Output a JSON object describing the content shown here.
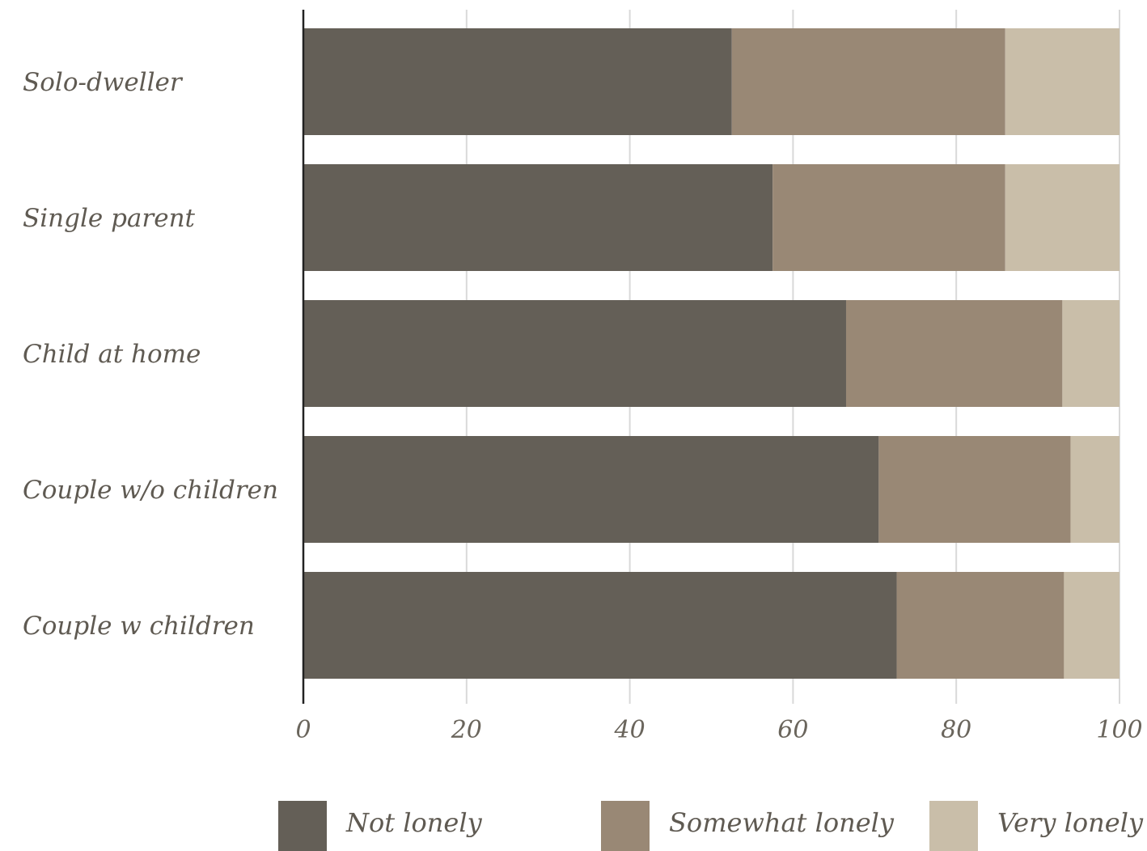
{
  "chart_data": {
    "type": "bar",
    "orientation": "horizontal",
    "stacked": true,
    "categories": [
      "Solo-dweller",
      "Single parent",
      "Child at home",
      "Couple w/o children",
      "Couple w children"
    ],
    "series": [
      {
        "name": "Not lonely",
        "color": "#645f57",
        "values": [
          52.5,
          57.5,
          66.5,
          70.5,
          72.7
        ]
      },
      {
        "name": "Somewhat lonely",
        "color": "#998875",
        "values": [
          33.5,
          28.5,
          26.5,
          23.5,
          20.5
        ]
      },
      {
        "name": "Very lonely",
        "color": "#c9bea9",
        "values": [
          14.0,
          14.0,
          7.0,
          6.0,
          6.8
        ]
      }
    ],
    "x_ticks": [
      "0",
      "20",
      "40",
      "60",
      "80",
      "100"
    ],
    "xlim": [
      0,
      100
    ],
    "grid": true,
    "legend_position": "bottom",
    "title": "",
    "xlabel": "",
    "ylabel": ""
  }
}
